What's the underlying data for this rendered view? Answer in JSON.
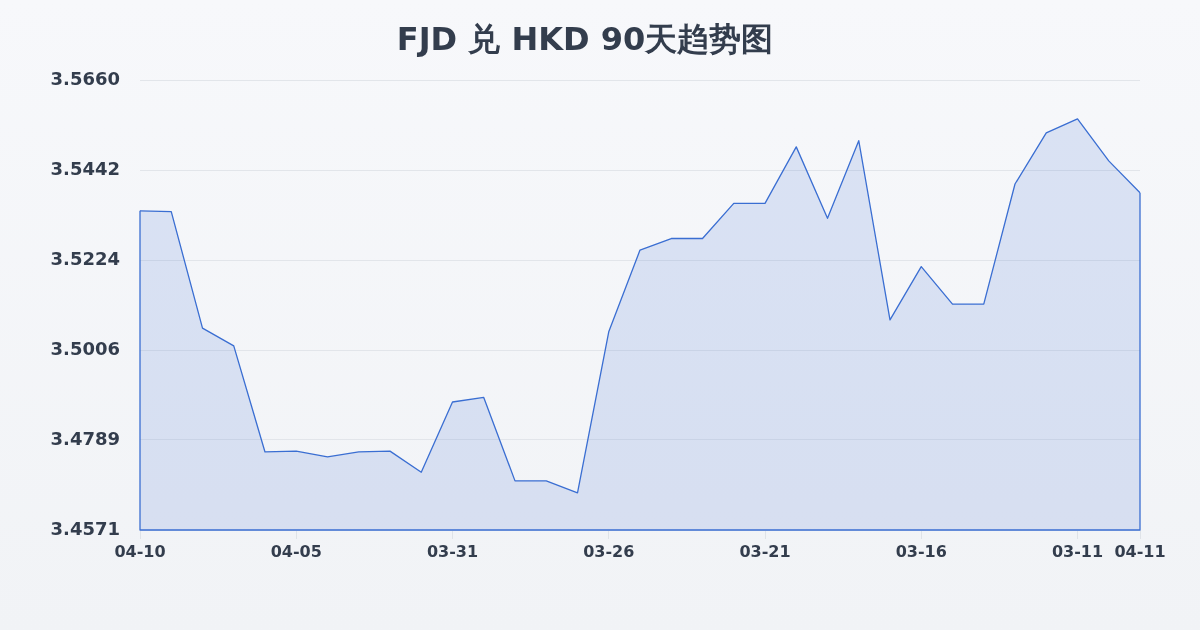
{
  "chart_data": {
    "type": "area",
    "title": "FJD 兑 HKD 90天趋势图",
    "categories": [
      "04-10",
      null,
      null,
      null,
      null,
      "04-05",
      null,
      null,
      null,
      null,
      "03-31",
      null,
      null,
      null,
      null,
      "03-26",
      null,
      null,
      null,
      null,
      "03-21",
      null,
      null,
      null,
      null,
      "03-16",
      null,
      null,
      null,
      null,
      "03-11",
      null,
      "04-11"
    ],
    "series": [
      {
        "color": "#3a6ed2",
        "values": [
          3.5344,
          3.5342,
          3.506,
          3.5017,
          3.476,
          3.4762,
          3.4748,
          3.476,
          3.4762,
          3.4711,
          3.4881,
          3.4892,
          3.469,
          3.469,
          3.4661,
          3.5051,
          3.5249,
          3.5277,
          3.5277,
          3.5362,
          3.5362,
          3.5499,
          3.5326,
          3.5514,
          3.508,
          3.5209,
          3.5118,
          3.5118,
          3.5409,
          3.5533,
          3.5567,
          3.5465,
          3.5388
        ]
      }
    ],
    "ylim": [
      3.4571,
      3.566
    ],
    "yticks": [
      3.4571,
      3.4789,
      3.5006,
      3.5224,
      3.5442,
      {
        "value": 3.566,
        "label": "3.5660"
      }
    ],
    "grid": "y",
    "legend": false,
    "marker": "none",
    "line_style": "solid"
  }
}
